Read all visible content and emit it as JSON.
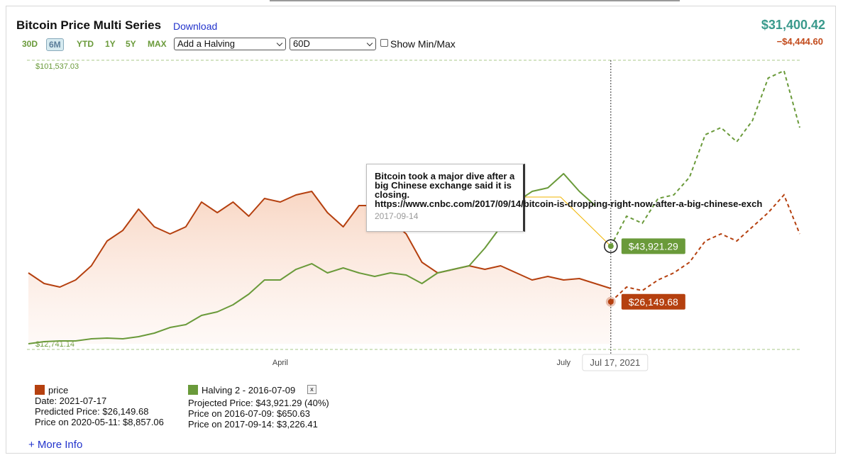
{
  "header": {
    "title": "Bitcoin Price Multi Series",
    "download": "Download",
    "price": "$31,400.42",
    "change": "−$4,444.60"
  },
  "controls": {
    "ranges": [
      "30D",
      "6M",
      "YTD",
      "1Y",
      "5Y",
      "MAX"
    ],
    "selected_range": "6M",
    "halving_select": "Add a Halving",
    "projection_select": "60D",
    "checkbox": "Show Min/Max"
  },
  "chart_data": {
    "type": "line",
    "categories": [
      null,
      null,
      null,
      null,
      null,
      null,
      null,
      null,
      null,
      null,
      null,
      null,
      null,
      null,
      null,
      null,
      "April",
      null,
      null,
      null,
      null,
      null,
      null,
      null,
      null,
      null,
      null,
      null,
      null,
      null,
      null,
      null,
      null,
      null,
      "July",
      null,
      null,
      null,
      null,
      null,
      null,
      null,
      null,
      null,
      null,
      null,
      null,
      null,
      null,
      null
    ],
    "ylim": [
      12741.14,
      101537.03
    ],
    "yticks": [
      {
        "value": 12741.14,
        "label": "$12,741.14"
      },
      {
        "value": 101537.03,
        "label": "$101,537.03"
      }
    ],
    "grid": true,
    "series": [
      {
        "name": "price",
        "color": "#b5400f",
        "values": [
          35391,
          31993,
          30860,
          33125,
          37656,
          45583,
          48980,
          55776,
          50114,
          47849,
          50114,
          58041,
          54644,
          58041,
          53510,
          59173,
          58041,
          60306,
          61438,
          54644,
          50114,
          56908,
          56908,
          52378,
          47849,
          38788,
          35391,
          36524,
          37656,
          36524,
          37656,
          35391,
          33125,
          34258,
          33125,
          33578,
          31993,
          30408,
          null,
          null,
          null,
          null,
          null,
          null,
          null,
          null,
          null,
          null,
          null,
          null
        ],
        "projected_values": [
          null,
          null,
          null,
          null,
          null,
          null,
          null,
          null,
          null,
          null,
          null,
          null,
          null,
          null,
          null,
          null,
          null,
          null,
          null,
          null,
          null,
          null,
          null,
          null,
          null,
          null,
          null,
          null,
          null,
          null,
          null,
          null,
          null,
          null,
          null,
          null,
          null,
          26149.68,
          30860,
          29727,
          33125,
          35391,
          38788,
          45583,
          47849,
          45583,
          50114,
          54644,
          60306,
          47849
        ],
        "projected_value_labels": [
          null,
          null,
          null,
          null,
          null,
          null,
          null,
          null,
          null,
          null,
          null,
          null,
          null,
          null,
          null,
          null,
          null,
          null,
          null,
          null,
          null,
          null,
          null,
          null,
          null,
          null,
          null,
          null,
          null,
          null,
          null,
          null,
          null,
          null,
          null,
          null,
          null,
          "$26,149.68",
          null,
          null,
          null,
          null,
          null,
          null,
          null,
          null,
          null,
          null,
          null,
          null
        ]
      },
      {
        "name": "Halving 2 - 2016-07-09",
        "color": "#6a9a3a",
        "values": [
          12741,
          13420,
          13647,
          13647,
          14326,
          14553,
          14326,
          15006,
          16139,
          17950,
          18856,
          21801,
          22933,
          25198,
          28596,
          33125,
          33125,
          36524,
          38335,
          35391,
          36977,
          35391,
          34258,
          35391,
          34711,
          31993,
          35391,
          36524,
          37656,
          43318,
          50114,
          58041,
          61438,
          62570,
          67100,
          61438,
          56908,
          null,
          null,
          null,
          null,
          null,
          null,
          null,
          null,
          null,
          null,
          null,
          null,
          null
        ],
        "projected_values": [
          null,
          null,
          null,
          null,
          null,
          null,
          null,
          null,
          null,
          null,
          null,
          null,
          null,
          null,
          null,
          null,
          null,
          null,
          null,
          null,
          null,
          null,
          null,
          null,
          null,
          null,
          null,
          null,
          null,
          null,
          null,
          null,
          null,
          null,
          null,
          null,
          null,
          43921.29,
          53510,
          51246,
          59173,
          60306,
          65967,
          79557,
          81822,
          77292,
          84087,
          97677,
          100000,
          81822
        ],
        "projected_value_labels": [
          null,
          null,
          null,
          null,
          null,
          null,
          null,
          null,
          null,
          null,
          null,
          null,
          null,
          null,
          null,
          null,
          null,
          null,
          null,
          null,
          null,
          null,
          null,
          null,
          null,
          null,
          null,
          null,
          null,
          null,
          null,
          null,
          null,
          null,
          null,
          null,
          null,
          "$43,921.29",
          null,
          null,
          null,
          null,
          null,
          null,
          null,
          null,
          null,
          null,
          null,
          null
        ]
      }
    ],
    "crosshair_label": "Jul 17, 2021"
  },
  "tooltip": {
    "text": "Bitcoin took a major dive after a big Chinese exchange said it is closing.",
    "url": "https://www.cnbc.com/2017/09/14/bitcoin-is-dropping-right-now-after-a-big-chinese-exch",
    "date": "2017-09-14"
  },
  "legend": {
    "price": {
      "label": "price",
      "lines": [
        "Date: 2021-07-17",
        "Predicted Price: $26,149.68",
        "Price on 2020-05-11: $8,857.06"
      ]
    },
    "halving": {
      "label": "Halving 2 - 2016-07-09",
      "remove": "x",
      "lines": [
        "Projected Price: $43,921.29 (40%)",
        "Price on 2016-07-09: $650.63",
        "Price on 2017-09-14: $3,226.41"
      ]
    }
  },
  "more_info": "+ More Info"
}
